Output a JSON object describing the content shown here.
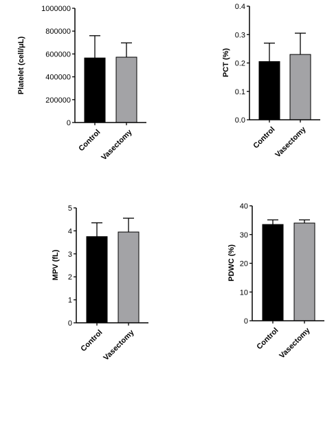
{
  "colors": {
    "control": "#000000",
    "vasectomy": "#a3a3a6",
    "axis": "#000000"
  },
  "chart_data": [
    {
      "type": "bar",
      "categories": [
        "Control",
        "Vasectomy"
      ],
      "values": [
        565000,
        572000
      ],
      "error": [
        195000,
        125000
      ],
      "ylabel": "Platelet (cell/μL)",
      "ylim": [
        0,
        1000000
      ],
      "yticks": [
        0,
        200000,
        400000,
        600000,
        800000,
        1000000
      ],
      "tick_labels": [
        "0",
        "200000",
        "400000",
        "600000",
        "800000",
        "1000000"
      ]
    },
    {
      "type": "bar",
      "categories": [
        "Control",
        "Vasectomy"
      ],
      "values": [
        0.205,
        0.23
      ],
      "error": [
        0.065,
        0.075
      ],
      "ylabel": "PCT (%)",
      "ylim": [
        0,
        0.4
      ],
      "yticks": [
        0,
        0.1,
        0.2,
        0.3,
        0.4
      ],
      "tick_labels": [
        "0.0",
        "0.1",
        "0.2",
        "0.3",
        "0.4"
      ]
    },
    {
      "type": "bar",
      "categories": [
        "Control",
        "Vasectomy"
      ],
      "values": [
        3.75,
        3.95
      ],
      "error": [
        0.6,
        0.6
      ],
      "ylabel": "MPV (fL)",
      "ylim": [
        0,
        5
      ],
      "yticks": [
        0,
        1,
        2,
        3,
        4,
        5
      ],
      "tick_labels": [
        "0",
        "1",
        "2",
        "3",
        "4",
        "5"
      ]
    },
    {
      "type": "bar",
      "categories": [
        "Control",
        "Vasectomy"
      ],
      "values": [
        33.5,
        34.0
      ],
      "error": [
        1.6,
        1.1
      ],
      "ylabel": "PDWC (%)",
      "ylim": [
        0,
        40
      ],
      "yticks": [
        0,
        10,
        20,
        30,
        40
      ],
      "tick_labels": [
        "0",
        "10",
        "20",
        "30",
        "40"
      ]
    }
  ]
}
